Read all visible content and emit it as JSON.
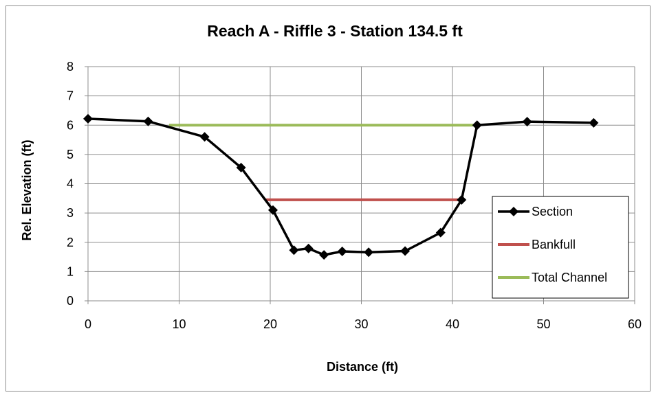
{
  "chart_data": {
    "type": "line",
    "title": "Reach A - Riffle 3 - Station 134.5 ft",
    "xlabel": "Distance (ft)",
    "ylabel": "Rel. Elevation (ft)",
    "xlim": [
      0,
      60
    ],
    "ylim": [
      0,
      8
    ],
    "xticks": [
      "0",
      "10",
      "20",
      "30",
      "40",
      "50",
      "60"
    ],
    "yticks": [
      "0",
      "1",
      "2",
      "3",
      "4",
      "5",
      "6",
      "7",
      "8"
    ],
    "grid": true,
    "legend_position": "bottom-right",
    "series": [
      {
        "name": "Section",
        "color": "#000000",
        "marker": "diamond",
        "x": [
          0,
          6.6,
          12.8,
          16.8,
          20.3,
          22.6,
          24.2,
          25.9,
          27.9,
          30.8,
          34.8,
          38.7,
          41.0,
          42.7,
          48.2,
          55.5
        ],
        "y": [
          6.22,
          6.13,
          5.6,
          4.55,
          3.1,
          1.73,
          1.79,
          1.57,
          1.69,
          1.66,
          1.7,
          2.33,
          3.45,
          6.0,
          6.12,
          6.08
        ]
      },
      {
        "name": "Bankfull",
        "color": "#c0504d",
        "marker": "none",
        "x": [
          19.4,
          41.0
        ],
        "y": [
          3.45,
          3.45
        ]
      },
      {
        "name": "Total Channel",
        "color": "#9bbb59",
        "marker": "none",
        "x": [
          8.9,
          42.7
        ],
        "y": [
          6.0,
          6.0
        ]
      }
    ]
  }
}
